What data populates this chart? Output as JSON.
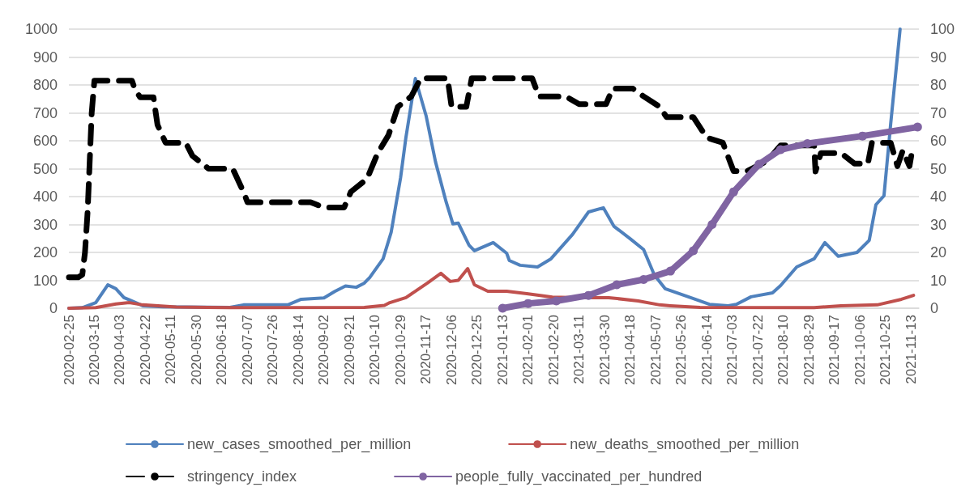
{
  "chart_data": {
    "type": "line",
    "xlim": [
      "2020-02-25",
      "2021-11-19"
    ],
    "xticks": [
      "2020-02-25",
      "2020-03-15",
      "2020-04-03",
      "2020-04-22",
      "2020-05-11",
      "2020-05-30",
      "2020-06-18",
      "2020-07-07",
      "2020-07-26",
      "2020-08-14",
      "2020-09-02",
      "2020-09-21",
      "2020-10-10",
      "2020-10-29",
      "2020-11-17",
      "2020-12-06",
      "2020-12-25",
      "2021-01-13",
      "2021-02-01",
      "2021-02-20",
      "2021-03-11",
      "2021-03-30",
      "2021-04-18",
      "2021-05-07",
      "2021-05-26",
      "2021-06-14",
      "2021-07-03",
      "2021-07-22",
      "2021-08-10",
      "2021-08-29",
      "2021-09-17",
      "2021-10-06",
      "2021-10-25",
      "2021-11-13"
    ],
    "ylim": [
      0,
      1000
    ],
    "yticks": [
      0,
      100,
      200,
      300,
      400,
      500,
      600,
      700,
      800,
      900,
      1000
    ],
    "y2lim": [
      0,
      100
    ],
    "y2ticks": [
      0,
      10,
      20,
      30,
      40,
      50,
      60,
      70,
      80,
      90,
      100
    ],
    "grid": "y",
    "legend": "bottom",
    "series": [
      {
        "name": "new_cases_smoothed_per_million",
        "color": "#4f81bd",
        "marker": "none",
        "line_style": "solid",
        "x": [
          "2020-02-25",
          "2020-03-06",
          "2020-03-16",
          "2020-03-25",
          "2020-03-31",
          "2020-04-06",
          "2020-04-10",
          "2020-04-20",
          "2020-05-05",
          "2020-06-24",
          "2020-07-04",
          "2020-08-06",
          "2020-08-16",
          "2020-09-02",
          "2020-09-10",
          "2020-09-18",
          "2020-09-26",
          "2020-10-02",
          "2020-10-06",
          "2020-10-16",
          "2020-10-22",
          "2020-10-29",
          "2020-11-02",
          "2020-11-09",
          "2020-11-17",
          "2020-11-24",
          "2020-12-02",
          "2020-12-07",
          "2020-12-11",
          "2020-12-19",
          "2020-12-23",
          "2021-01-06",
          "2021-01-16",
          "2021-01-18",
          "2021-01-26",
          "2021-02-08",
          "2021-02-18",
          "2021-03-06",
          "2021-03-18",
          "2021-03-29",
          "2021-04-06",
          "2021-04-18",
          "2021-04-28",
          "2021-05-06",
          "2021-05-14",
          "2021-06-02",
          "2021-06-16",
          "2021-06-30",
          "2021-07-06",
          "2021-07-17",
          "2021-08-02",
          "2021-08-08",
          "2021-08-20",
          "2021-09-02",
          "2021-09-10",
          "2021-09-20",
          "2021-10-04",
          "2021-10-13",
          "2021-10-18",
          "2021-10-24",
          "2021-10-29",
          "2021-11-05"
        ],
        "values": [
          0,
          2,
          20,
          84,
          70,
          38,
          30,
          9,
          5,
          3,
          12,
          12,
          32,
          37,
          60,
          80,
          75,
          90,
          110,
          177,
          272,
          467,
          612,
          823,
          690,
          525,
          380,
          302,
          305,
          226,
          206,
          235,
          197,
          171,
          154,
          148,
          177,
          264,
          345,
          360,
          293,
          249,
          210,
          119,
          70,
          38,
          14,
          9,
          14,
          41,
          55,
          81,
          148,
          177,
          235,
          186,
          200,
          243,
          371,
          403,
          661,
          1000
        ]
      },
      {
        "name": "new_deaths_smoothed_per_million",
        "color": "#c0504d",
        "marker": "none",
        "line_style": "solid",
        "x": [
          "2020-02-25",
          "2020-03-16",
          "2020-03-31",
          "2020-04-10",
          "2020-04-20",
          "2020-05-15",
          "2020-06-24",
          "2020-10-02",
          "2020-10-17",
          "2020-10-21",
          "2020-11-02",
          "2020-11-18",
          "2020-11-28",
          "2020-12-05",
          "2020-12-11",
          "2020-12-18",
          "2020-12-23",
          "2021-01-02",
          "2021-01-16",
          "2021-01-31",
          "2021-02-19",
          "2021-03-11",
          "2021-04-02",
          "2021-04-24",
          "2021-05-10",
          "2021-05-18",
          "2021-06-09",
          "2021-09-02",
          "2021-09-22",
          "2021-10-19",
          "2021-11-06",
          "2021-11-15"
        ],
        "values": [
          0,
          2,
          15,
          20,
          12,
          4,
          2,
          3,
          10,
          20,
          38,
          90,
          125,
          96,
          100,
          142,
          84,
          61,
          61,
          52,
          40,
          38,
          38,
          26,
          12,
          9,
          3,
          2,
          9,
          12,
          32,
          46
        ]
      },
      {
        "name": "stringency_index",
        "color": "#000000",
        "marker": "none",
        "line_style": "dashed",
        "axis": "y2",
        "x": [
          "2020-02-25",
          "2020-03-03",
          "2020-03-06",
          "2020-03-08",
          "2020-03-10",
          "2020-03-13",
          "2020-03-15",
          "2020-04-12",
          "2020-04-14",
          "2020-04-18",
          "2020-04-28",
          "2020-05-01",
          "2020-05-07",
          "2020-05-22",
          "2020-05-27",
          "2020-06-08",
          "2020-06-26",
          "2020-07-04",
          "2020-07-07",
          "2020-08-23",
          "2020-09-02",
          "2020-09-17",
          "2020-09-22",
          "2020-10-04",
          "2020-10-12",
          "2020-10-20",
          "2020-10-27",
          "2020-11-06",
          "2020-11-13",
          "2020-12-03",
          "2020-12-06",
          "2020-12-17",
          "2020-12-21",
          "2021-02-04",
          "2021-02-09",
          "2021-03-01",
          "2021-03-11",
          "2021-03-31",
          "2021-04-05",
          "2021-04-20",
          "2021-04-28",
          "2021-05-10",
          "2021-05-15",
          "2021-06-04",
          "2021-06-14",
          "2021-06-26",
          "2021-07-04",
          "2021-07-14",
          "2021-07-29",
          "2021-08-08",
          "2021-09-02",
          "2021-09-03",
          "2021-09-07",
          "2021-09-22",
          "2021-10-02",
          "2021-10-12",
          "2021-10-15",
          "2021-10-29",
          "2021-11-03",
          "2021-11-07",
          "2021-11-12",
          "2021-11-14"
        ],
        "values": [
          11.1,
          11.1,
          12,
          20,
          35,
          70,
          81.5,
          81.5,
          78.7,
          75.6,
          75.6,
          65.7,
          59.3,
          59.3,
          54.6,
          50,
          50,
          41.7,
          38,
          38,
          36.1,
          36.1,
          41.7,
          46.3,
          55.6,
          62,
          72.2,
          75.9,
          82.4,
          82.4,
          72.2,
          72.2,
          82.4,
          82.4,
          75.9,
          75.9,
          73.1,
          73.1,
          78.7,
          78.7,
          75.9,
          72.2,
          68.5,
          68.5,
          61.1,
          59.3,
          49.1,
          49.1,
          52.8,
          58.3,
          58.3,
          49,
          55.6,
          55.6,
          51.8,
          51.8,
          59.3,
          59.3,
          50.9,
          56.5,
          50.9,
          56.5
        ]
      },
      {
        "name": "people_fully_vaccinated_per_hundred",
        "color": "#8064a2",
        "marker": "circle",
        "line_style": "solid",
        "axis": "y2",
        "x": [
          "2021-01-13",
          "2021-02-01",
          "2021-02-22",
          "2021-03-18",
          "2021-04-08",
          "2021-04-28",
          "2021-05-18",
          "2021-06-04",
          "2021-06-18",
          "2021-07-04",
          "2021-07-23",
          "2021-08-08",
          "2021-08-28",
          "2021-10-08",
          "2021-11-18"
        ],
        "values": [
          0,
          1.7,
          2.6,
          4.6,
          8.4,
          10.3,
          13.3,
          20.6,
          30,
          41.7,
          51.6,
          56.8,
          59,
          61.7,
          64.9
        ]
      }
    ]
  }
}
